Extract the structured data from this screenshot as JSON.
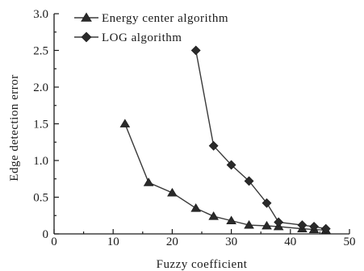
{
  "chart_data": {
    "type": "line",
    "xlabel": "Fuzzy coefficient",
    "ylabel": "Edge detection error",
    "xlim": [
      0,
      50
    ],
    "ylim": [
      0,
      3.0
    ],
    "x_ticks": [
      0,
      10,
      20,
      30,
      40,
      50
    ],
    "y_ticks": [
      0,
      0.5,
      1.0,
      1.5,
      2.0,
      2.5,
      3.0
    ],
    "y_tick_labels": [
      "0",
      "0.5",
      "1.0",
      "1.5",
      "2.0",
      "2.5",
      "3.0"
    ],
    "legend_position": "top-left",
    "series": [
      {
        "name": "Energy center algorithm",
        "marker": "triangle",
        "color": "#2a2a2a",
        "x": [
          12,
          16,
          20,
          24,
          27,
          30,
          33,
          36,
          38,
          42,
          44,
          46
        ],
        "y": [
          1.5,
          0.7,
          0.56,
          0.35,
          0.24,
          0.18,
          0.12,
          0.11,
          0.1,
          0.07,
          0.06,
          0.05
        ]
      },
      {
        "name": "LOG algorithm",
        "marker": "diamond",
        "color": "#2a2a2a",
        "x": [
          24,
          27,
          30,
          33,
          36,
          38,
          42,
          44,
          46
        ],
        "y": [
          2.5,
          1.2,
          0.94,
          0.72,
          0.42,
          0.16,
          0.12,
          0.1,
          0.07
        ]
      }
    ]
  }
}
